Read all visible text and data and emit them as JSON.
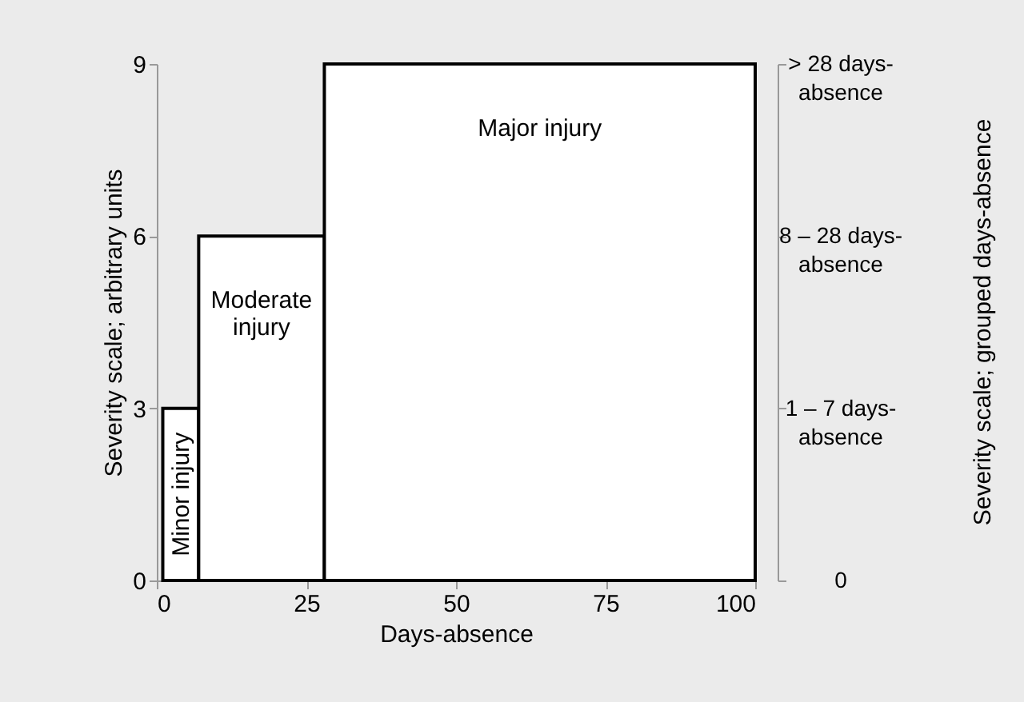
{
  "chart_data": {
    "type": "histogram",
    "bins": [
      1,
      7,
      28,
      100
    ],
    "values": [
      3,
      6,
      9
    ],
    "color": "#ffffff",
    "xlabel": "Days-absence",
    "ylabel": "Severity scale; arbitrary units",
    "xlim": [
      0,
      100
    ],
    "xticks": [
      0,
      25,
      50,
      75,
      100
    ],
    "ylim": [
      0,
      9
    ],
    "yticks": [
      0,
      3,
      6,
      9
    ],
    "y2_categories": [
      "> 28 days-\nabsence",
      "8 – 28 days-\nabsence",
      "1 – 7 days-\nabsence",
      "0"
    ],
    "grid": false,
    "annotations": [
      "Minor injury",
      "Moderate\ninjury",
      "Major injury",
      "Severity scale; grouped days-absence"
    ]
  }
}
